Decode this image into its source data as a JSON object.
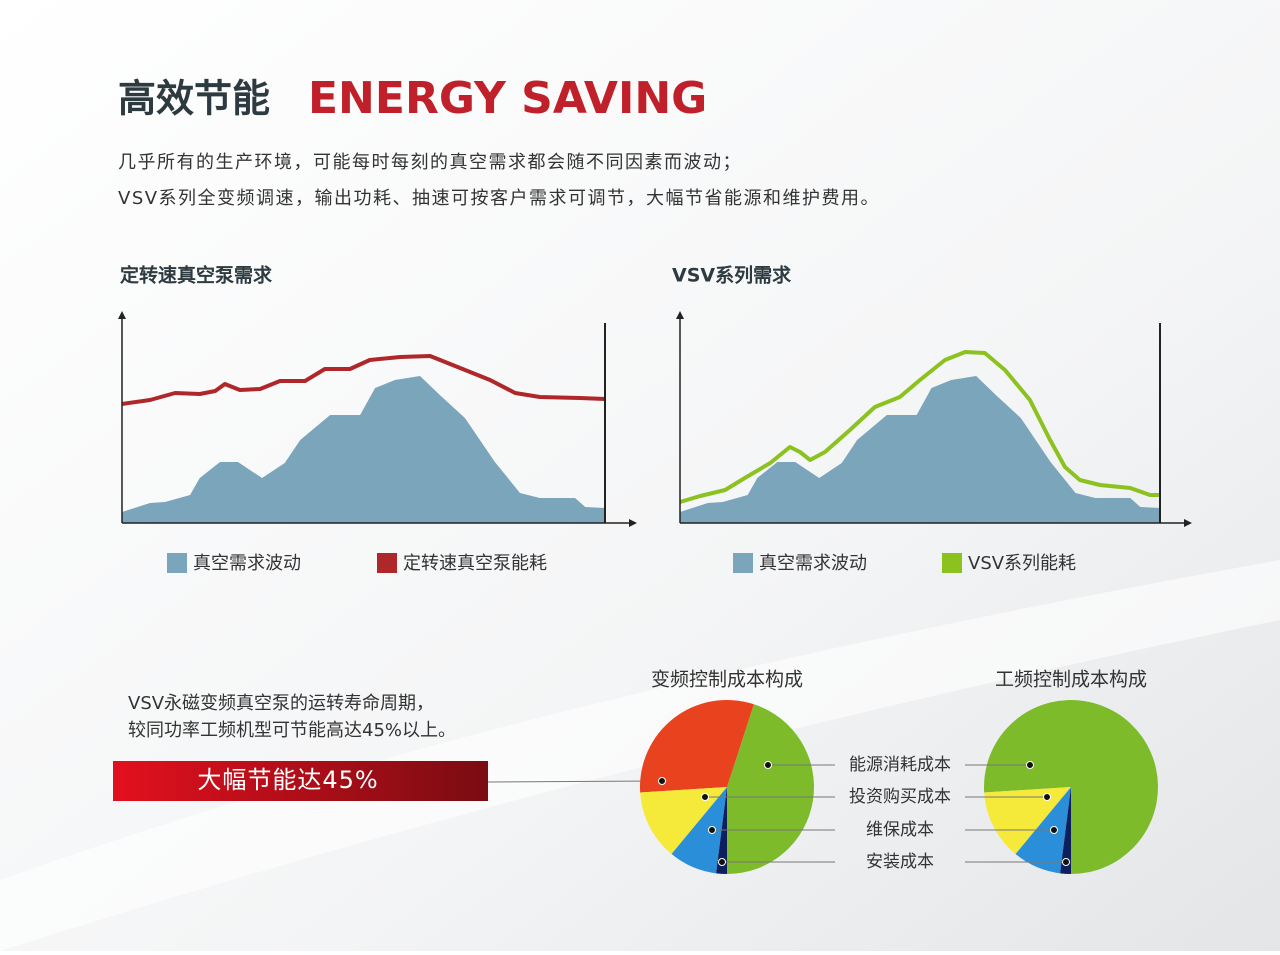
{
  "header": {
    "title_cn": "高效节能",
    "title_en": "ENERGY SAVING"
  },
  "intro": [
    "几乎所有的生产环境，可能每时每刻的真空需求都会随不同因素而波动；",
    "VSV系列全变频调速，输出功耗、抽速可按客户需求可调节，大幅节省能源和维护费用。"
  ],
  "chart_data": [
    {
      "type": "area-line",
      "title": "定转速真空泵需求",
      "xlim": [
        0,
        100
      ],
      "ylim": [
        0,
        100
      ],
      "series": [
        {
          "name": "真空需求波动",
          "color": "#7aa5bb",
          "kind": "area",
          "x": [
            0,
            5.8,
            8.9,
            14.1,
            16.1,
            20.3,
            24,
            29,
            33.7,
            36.9,
            43.1,
            49.3,
            52.4,
            56.5,
            61.7,
            65.8,
            71,
            74.1,
            77.2,
            82.4,
            86.5,
            89.6,
            93.8,
            95.9,
            100
          ],
          "values": [
            5.5,
            10,
            10.5,
            14,
            22.5,
            30.5,
            30.5,
            22.5,
            30,
            41.5,
            54,
            54,
            67.5,
            71.5,
            73.5,
            64,
            52.5,
            41.5,
            30.5,
            15,
            12.5,
            12.5,
            12.5,
            8,
            7.5
          ]
        },
        {
          "name": "定转速真空泵能耗",
          "color": "#b0272a",
          "kind": "line",
          "x": [
            0,
            5.8,
            11,
            16.1,
            19.3,
            21.3,
            24.4,
            28.6,
            32.7,
            37.9,
            42,
            47.2,
            51.3,
            57.6,
            63.8,
            70,
            76.2,
            81.4,
            86.5,
            94.8,
            100
          ],
          "values": [
            59.5,
            61.5,
            65,
            64.5,
            66,
            69.5,
            66.5,
            67,
            71,
            71,
            77,
            77,
            81.5,
            83,
            83.5,
            77.5,
            71.5,
            65,
            63,
            62.5,
            62
          ]
        }
      ]
    },
    {
      "type": "area-line",
      "title": "VSV系列需求",
      "xlim": [
        0,
        100
      ],
      "ylim": [
        0,
        100
      ],
      "series": [
        {
          "name": "真空需求波动",
          "color": "#7aa5bb",
          "kind": "area",
          "x": [
            0,
            5.8,
            8.9,
            14.1,
            16.1,
            20.3,
            24,
            29,
            33.7,
            36.9,
            43.1,
            49.3,
            52.4,
            56.5,
            61.7,
            65.8,
            71,
            74.1,
            77.2,
            82.4,
            86.5,
            89.6,
            93.8,
            95.9,
            100
          ],
          "values": [
            5.5,
            10,
            10.5,
            14,
            22.5,
            30.5,
            30.5,
            22.5,
            30,
            41.5,
            54,
            54,
            67.5,
            71.5,
            73.5,
            64,
            52.5,
            41.5,
            30.5,
            15,
            12.5,
            12.5,
            12.5,
            8,
            7.5
          ]
        },
        {
          "name": "VSV系列能耗",
          "color": "#8cc21f",
          "kind": "line",
          "x": [
            0,
            4.2,
            9.4,
            13.5,
            18.8,
            22.9,
            25,
            27.1,
            30.2,
            35.4,
            40.6,
            45.8,
            50,
            55.2,
            59.4,
            63.5,
            67.7,
            72.9,
            77.1,
            80.2,
            83.3,
            87.5,
            93.8,
            97.9,
            100
          ],
          "values": [
            10.5,
            13.5,
            16.5,
            22.5,
            30,
            38,
            35.5,
            31.5,
            35.5,
            46.5,
            58,
            63,
            71.5,
            81.5,
            85.5,
            85,
            76.5,
            61.5,
            41.5,
            28,
            21.5,
            19,
            17.5,
            14,
            14
          ]
        }
      ]
    },
    {
      "type": "pie",
      "title": "变频控制成本构成",
      "values": [
        45,
        31,
        13,
        9,
        2
      ],
      "colors": [
        "#7dbb2a",
        "#e8421f",
        "#f5e93a",
        "#2a8fd8",
        "#0d1f5c"
      ]
    },
    {
      "type": "pie",
      "title": "工频控制成本构成",
      "values": [
        76,
        13,
        9,
        2
      ],
      "colors": [
        "#7dbb2a",
        "#f5e93a",
        "#2a8fd8",
        "#0d1f5c"
      ]
    }
  ],
  "cost_labels": [
    "能源消耗成本",
    "投资购买成本",
    "维保成本",
    "安装成本"
  ],
  "savings": {
    "lines": [
      "VSV永磁变频真空泵的运转寿命周期，",
      "较同功率工频机型可节能高达45%以上。"
    ],
    "banner": "大幅节能达45%"
  }
}
